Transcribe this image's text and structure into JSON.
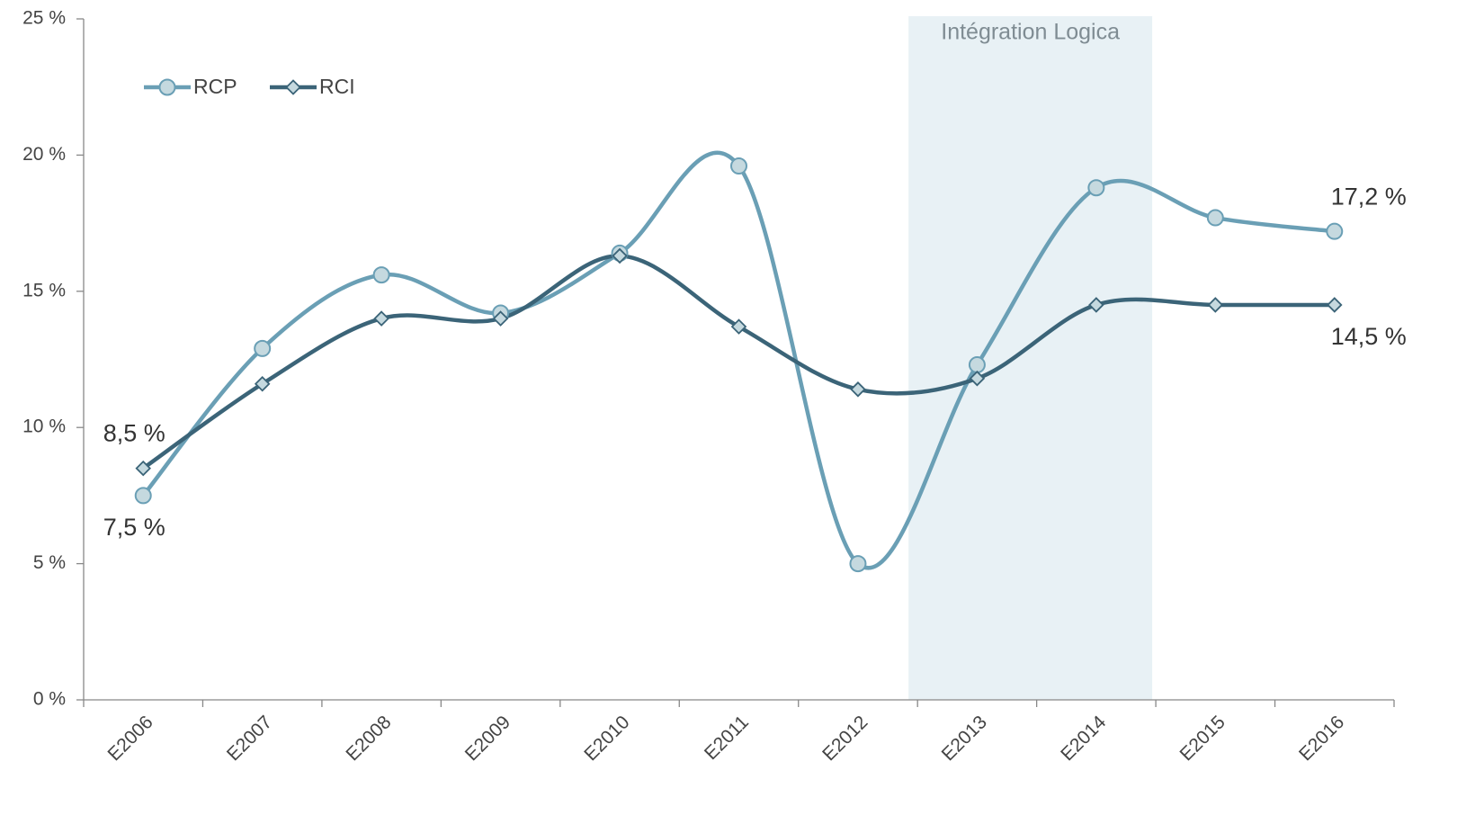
{
  "chart_data": {
    "type": "line",
    "categories": [
      "E2006",
      "E2007",
      "E2008",
      "E2009",
      "E2010",
      "E2011",
      "E2012",
      "E2013",
      "E2014",
      "E2015",
      "E2016"
    ],
    "series": [
      {
        "name": "RCP",
        "color": "#6a9fb5",
        "marker": "circle",
        "values": [
          7.5,
          12.9,
          15.6,
          14.2,
          16.4,
          19.6,
          5.0,
          12.3,
          18.8,
          17.7,
          17.2
        ],
        "value_labels": [
          "7,5 %",
          null,
          null,
          null,
          null,
          null,
          null,
          null,
          null,
          null,
          "17,2 %"
        ]
      },
      {
        "name": "RCI",
        "color": "#3b6478",
        "marker": "diamond",
        "values": [
          8.5,
          11.6,
          14.0,
          14.0,
          16.3,
          13.7,
          11.4,
          11.8,
          14.5,
          14.5,
          14.5
        ],
        "value_labels": [
          "8,5 %",
          null,
          null,
          null,
          null,
          null,
          null,
          null,
          null,
          null,
          "14,5 %"
        ]
      }
    ],
    "ylim": [
      0,
      25
    ],
    "yticks": [
      {
        "value": 0,
        "label": "0 %"
      },
      {
        "value": 5,
        "label": "5 %"
      },
      {
        "value": 10,
        "label": "10 %"
      },
      {
        "value": 15,
        "label": "15 %"
      },
      {
        "value": 20,
        "label": "20 %"
      },
      {
        "value": 25,
        "label": "25 %"
      }
    ],
    "highlight": {
      "text": "Intégration Logica",
      "from": "E2013",
      "to": "E2014"
    },
    "legend": "top-left",
    "grid": false
  }
}
